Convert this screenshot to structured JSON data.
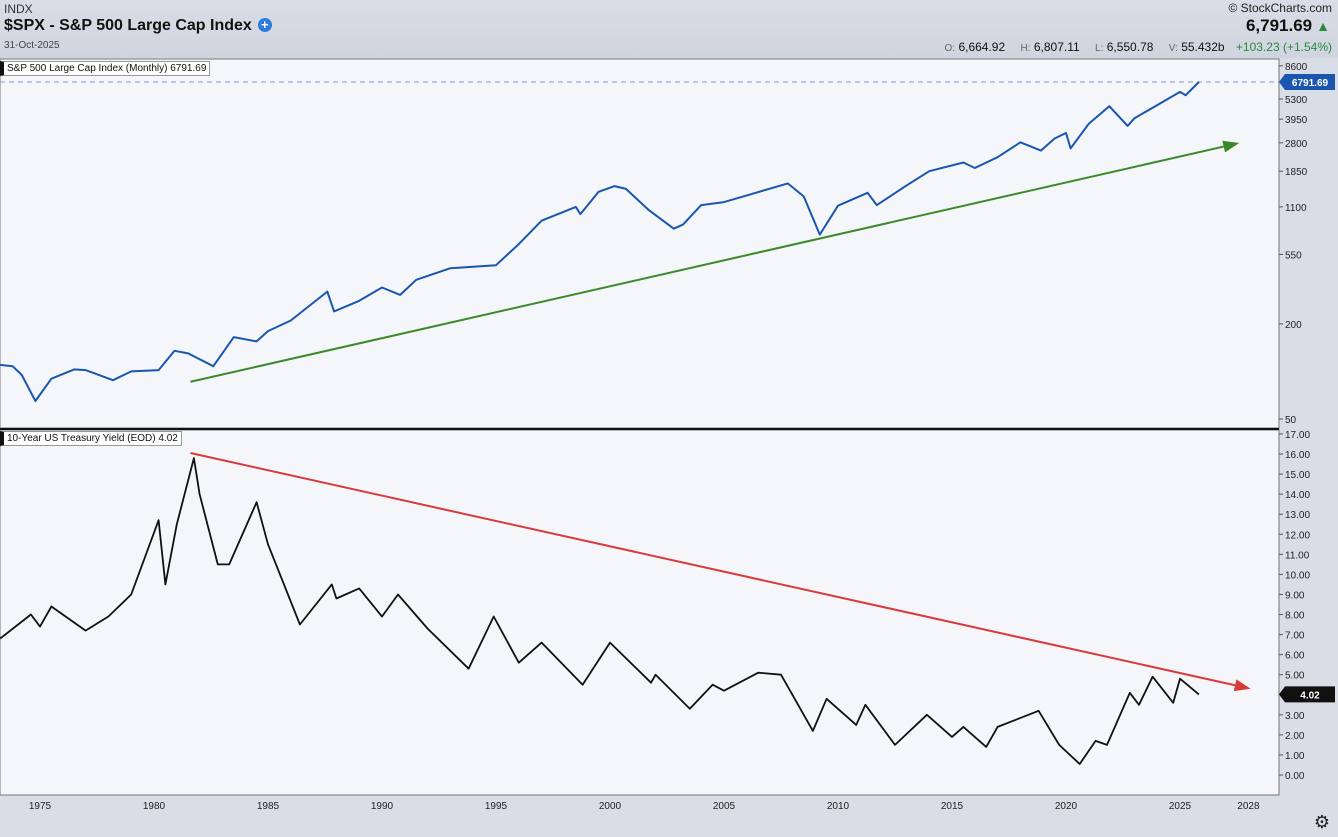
{
  "header": {
    "exchange": "INDX",
    "title": "$SPX - S&P 500 Large Cap Index",
    "date": "31-Oct-2025",
    "brand": "© StockCharts.com",
    "last": "6,791.69",
    "ohlc": {
      "o_label": "O:",
      "o": "6,664.92",
      "h_label": "H:",
      "h": "6,807.11",
      "l_label": "L:",
      "l": "6,550.78",
      "v_label": "V:",
      "v": "55.432b",
      "change": "+103.23 (+1.54%)"
    }
  },
  "chart_data": [
    {
      "type": "line",
      "title": "S&P 500 Large Cap Index (Monthly) 6791.69",
      "scale": "log",
      "color": "#1a56b0",
      "last_label": "6791.69",
      "yticks": [
        "8600",
        "5300",
        "3950",
        "2800",
        "1850",
        "1100",
        "550",
        "200",
        "50"
      ],
      "ylim": [
        50,
        8600
      ],
      "x": [
        1973.25,
        1973.8,
        1974.2,
        1974.8,
        1975.5,
        1976.5,
        1977,
        1978.2,
        1979,
        1980.2,
        1980.9,
        1981.5,
        1982.6,
        1983.5,
        1984.5,
        1985,
        1986,
        1987.6,
        1987.9,
        1989,
        1990,
        1990.8,
        1991.5,
        1993,
        1994,
        1995,
        1996,
        1997,
        1998.5,
        1998.7,
        1999.5,
        2000.2,
        2000.7,
        2001.7,
        2002.8,
        2003.2,
        2004,
        2005,
        2006,
        2007.8,
        2008.5,
        2009.2,
        2010,
        2011.3,
        2011.7,
        2013,
        2014,
        2015.5,
        2016,
        2017,
        2018,
        2018.9,
        2019.5,
        2020,
        2020.2,
        2021,
        2021.9,
        2022.7,
        2023,
        2024,
        2025,
        2025.25,
        2025.83
      ],
      "y": [
        110,
        108,
        95,
        65,
        90,
        103,
        102,
        88,
        100,
        102,
        135,
        130,
        108,
        165,
        155,
        180,
        210,
        320,
        240,
        280,
        340,
        305,
        380,
        450,
        460,
        470,
        640,
        900,
        1100,
        990,
        1370,
        1490,
        1430,
        1050,
        800,
        850,
        1130,
        1180,
        1300,
        1550,
        1280,
        735,
        1120,
        1350,
        1130,
        1500,
        1850,
        2100,
        1940,
        2270,
        2820,
        2500,
        2980,
        3230,
        2580,
        3700,
        4770,
        3580,
        4000,
        4850,
        5880,
        5600,
        6791.69
      ],
      "trendline": {
        "color": "#3a8a2a",
        "from": [
          1981.6,
          86
        ],
        "to": [
          2027.6,
          2790
        ]
      }
    },
    {
      "type": "line",
      "title": "10-Year US Treasury Yield (EOD) 4.02",
      "scale": "linear",
      "color": "#111111",
      "last_label": "4.02",
      "yticks": [
        "17.00",
        "16.00",
        "15.00",
        "14.00",
        "13.00",
        "12.00",
        "11.00",
        "10.00",
        "9.00",
        "8.00",
        "7.00",
        "6.00",
        "5.00",
        "4.00",
        "3.00",
        "2.00",
        "1.00",
        "0.00"
      ],
      "ylim": [
        0,
        17
      ],
      "x": [
        1973.25,
        1974.6,
        1975,
        1975.5,
        1977,
        1978,
        1979,
        1980.2,
        1980.5,
        1981,
        1981.75,
        1982,
        1982.8,
        1983.3,
        1984.5,
        1985,
        1986.4,
        1987.8,
        1988,
        1989,
        1990,
        1990.7,
        1992,
        1993.8,
        1994.9,
        1996,
        1997,
        1998.8,
        2000,
        2001.8,
        2002,
        2003.5,
        2004.5,
        2005,
        2006.5,
        2007.5,
        2008.9,
        2009.5,
        2010.8,
        2011.2,
        2012.5,
        2013.9,
        2015,
        2015.5,
        2016.5,
        2017,
        2018.8,
        2019.7,
        2020.6,
        2021.3,
        2021.8,
        2022.8,
        2023.2,
        2023.8,
        2024.7,
        2025,
        2025.83
      ],
      "y": [
        6.8,
        8.0,
        7.4,
        8.4,
        7.2,
        7.9,
        9.0,
        12.7,
        9.5,
        12.5,
        15.8,
        14,
        10.5,
        10.5,
        13.6,
        11.5,
        7.5,
        9.5,
        8.8,
        9.3,
        7.9,
        9.0,
        7.3,
        5.3,
        7.9,
        5.6,
        6.6,
        4.5,
        6.6,
        4.6,
        5.0,
        3.3,
        4.5,
        4.2,
        5.1,
        5.0,
        2.2,
        3.8,
        2.5,
        3.5,
        1.5,
        3.0,
        1.9,
        2.4,
        1.4,
        2.4,
        3.2,
        1.5,
        0.55,
        1.7,
        1.5,
        4.1,
        3.5,
        4.9,
        3.6,
        4.8,
        4.02
      ],
      "trendline": {
        "color": "#d93a3a",
        "from": [
          1981.6,
          16.05
        ],
        "to": [
          2028.1,
          4.3
        ]
      }
    }
  ],
  "xaxis": {
    "ticks": [
      "1975",
      "1980",
      "1985",
      "1990",
      "1995",
      "2000",
      "2005",
      "2010",
      "2015",
      "2020",
      "2025",
      "2028"
    ],
    "values": [
      1975,
      1980,
      1985,
      1990,
      1995,
      2000,
      2005,
      2010,
      2015,
      2020,
      2025,
      2028
    ]
  }
}
